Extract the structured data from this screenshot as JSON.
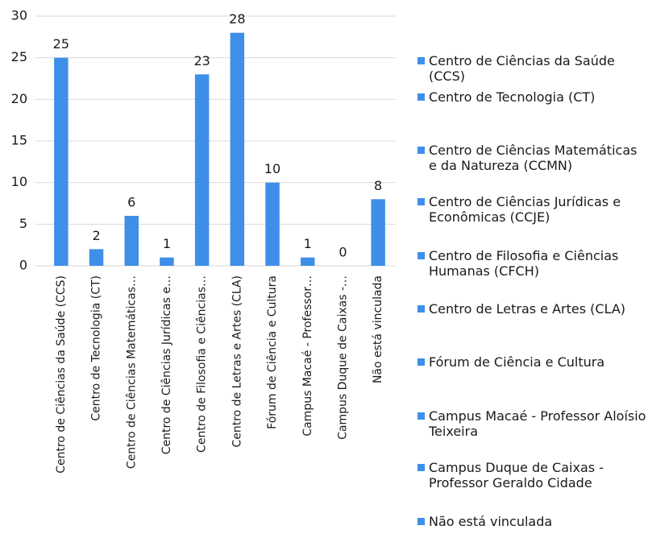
{
  "chart_data": {
    "type": "bar",
    "categories": [
      "Centro de Ciências da Saúde (CCS)",
      "Centro de Tecnologia (CT)",
      "Centro de Ciências Matemáticas…",
      "Centro de Ciências Jurídicas e…",
      "Centro de Filosofia e Ciências…",
      "Centro de Letras e Artes (CLA)",
      "Fórum de Ciência e Cultura",
      "Campus Macaé - Professor…",
      "Campus Duque de Caixas -…",
      "Não está vinculada"
    ],
    "legend_labels": [
      "Centro de Ciências da Saúde (CCS)",
      "Centro de Tecnologia (CT)",
      "Centro de Ciências Matemáticas e da Natureza (CCMN)",
      "Centro de Ciências Jurídicas e Econômicas (CCJE)",
      "Centro de Filosofia e Ciências Humanas (CFCH)",
      "Centro de Letras e Artes (CLA)",
      "Fórum de Ciência e Cultura",
      "Campus Macaé - Professor Aloísio Teixeira",
      "Campus Duque de Caixas - Professor Geraldo Cidade",
      "Não está vinculada"
    ],
    "values": [
      25,
      2,
      6,
      1,
      23,
      28,
      10,
      1,
      0,
      8
    ],
    "color": "#3f8fe8",
    "ylim": [
      0,
      30
    ],
    "yticks": [
      0,
      5,
      10,
      15,
      20,
      25,
      30
    ],
    "grid": true
  }
}
